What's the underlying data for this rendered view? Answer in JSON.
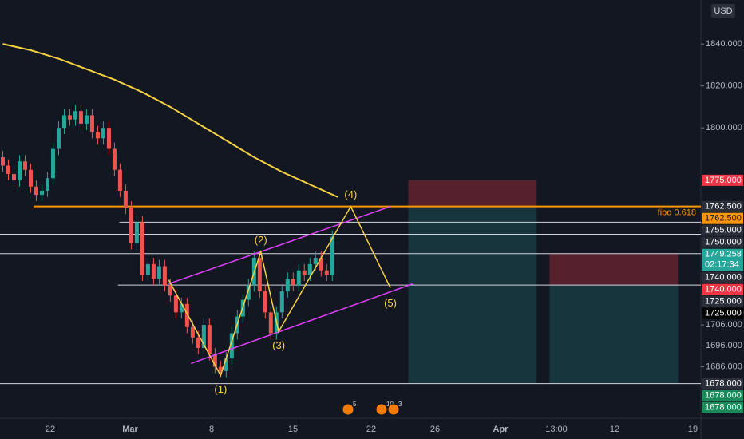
{
  "chart_data": {
    "type": "candlestick",
    "currency": "USD",
    "up_color": "#26a69a",
    "down_color": "#ef5350",
    "xlim": [
      -0.5,
      125
    ],
    "ylim": [
      1663,
      1861
    ],
    "open": [
      1786,
      1782,
      1778,
      1775,
      1784,
      1780,
      1772,
      1768,
      1770,
      1776,
      1790,
      1800,
      1806,
      1804,
      1808,
      1802,
      1806,
      1798,
      1795,
      1800,
      1790,
      1780,
      1770,
      1762,
      1745,
      1755,
      1730,
      1735,
      1728,
      1734,
      1725,
      1720,
      1712,
      1716,
      1705,
      1700,
      1695,
      1706,
      1692,
      1686,
      1684,
      1690,
      1702,
      1710,
      1718,
      1725,
      1738,
      1722,
      1712,
      1702,
      1712,
      1722,
      1728,
      1725,
      1732,
      1730,
      1735,
      1738,
      1732,
      1730
    ],
    "high": [
      1789,
      1785,
      1781,
      1787,
      1787,
      1783,
      1775,
      1773,
      1779,
      1793,
      1803,
      1809,
      1809,
      1811,
      1811,
      1809,
      1809,
      1801,
      1803,
      1803,
      1793,
      1783,
      1773,
      1765,
      1758,
      1758,
      1738,
      1738,
      1737,
      1737,
      1728,
      1723,
      1719,
      1719,
      1708,
      1703,
      1709,
      1709,
      1695,
      1689,
      1693,
      1705,
      1713,
      1721,
      1728,
      1741,
      1741,
      1725,
      1715,
      1715,
      1725,
      1731,
      1731,
      1735,
      1735,
      1738,
      1741,
      1741,
      1735,
      1751
    ],
    "low": [
      1779,
      1775,
      1772,
      1772,
      1777,
      1769,
      1765,
      1765,
      1767,
      1773,
      1787,
      1797,
      1801,
      1801,
      1799,
      1799,
      1795,
      1792,
      1792,
      1787,
      1777,
      1767,
      1759,
      1742,
      1742,
      1727,
      1727,
      1725,
      1725,
      1722,
      1717,
      1709,
      1709,
      1702,
      1697,
      1692,
      1692,
      1689,
      1683,
      1681,
      1681,
      1687,
      1699,
      1707,
      1715,
      1722,
      1719,
      1709,
      1699,
      1699,
      1709,
      1719,
      1722,
      1722,
      1727,
      1727,
      1732,
      1729,
      1727,
      1727
    ],
    "close": [
      1782,
      1778,
      1775,
      1784,
      1780,
      1772,
      1768,
      1770,
      1776,
      1790,
      1800,
      1806,
      1804,
      1808,
      1802,
      1806,
      1798,
      1795,
      1800,
      1790,
      1780,
      1770,
      1762,
      1745,
      1755,
      1730,
      1735,
      1728,
      1734,
      1725,
      1720,
      1712,
      1716,
      1705,
      1700,
      1695,
      1706,
      1692,
      1686,
      1684,
      1690,
      1702,
      1710,
      1718,
      1725,
      1738,
      1722,
      1712,
      1702,
      1712,
      1722,
      1728,
      1725,
      1732,
      1730,
      1735,
      1738,
      1732,
      1730,
      1748
    ],
    "yticks": [
      {
        "value": 1840,
        "label": "1840.000"
      },
      {
        "value": 1820,
        "label": "1820.000"
      },
      {
        "value": 1800,
        "label": "1800.000"
      },
      {
        "value": 1706,
        "label": "1706.000"
      },
      {
        "value": 1696,
        "label": "1696.000"
      },
      {
        "value": 1686,
        "label": "1686.000"
      }
    ],
    "x_labels": [
      "22",
      "Mar",
      "8",
      "15",
      "22",
      "26",
      "Apr",
      "13:00",
      "12",
      "19"
    ],
    "ma": {
      "color": "#f5d142",
      "x": [
        0,
        5,
        10,
        15,
        20,
        25,
        30,
        35,
        40,
        45,
        50,
        55,
        60
      ],
      "values": [
        1840,
        1837,
        1833,
        1828,
        1823,
        1817,
        1810,
        1802,
        1794,
        1786,
        1779,
        1773,
        1767
      ]
    },
    "waves": {
      "color": "#f5d142",
      "x": [
        29.7,
        39,
        46.2,
        49.4,
        62.3,
        69.4
      ],
      "values": [
        1727.5,
        1681.9,
        1740.8,
        1702.8,
        1762.5,
        1723.7
      ],
      "labels": [
        "(1)",
        "(2)",
        "(3)",
        "(4)",
        "(5)"
      ]
    },
    "channels": {
      "color": "#e040fb",
      "lines": [
        {
          "x": [
            29.7,
            69.4
          ],
          "values": [
            1725.6,
            1762.5
          ]
        },
        {
          "x": [
            33.7,
            73.4
          ],
          "values": [
            1687.6,
            1725.6
          ]
        }
      ]
    },
    "levels": [
      {
        "value": 1762.5,
        "color": "#ff9800",
        "from": 5.5
      },
      {
        "value": 1755,
        "color": "#d1d4dc",
        "from": 20.9
      },
      {
        "value": 1749.258,
        "color": "#d1d4dc",
        "from": -0.5
      },
      {
        "value": 1740,
        "color": "#d1d4dc",
        "from": -0.5
      },
      {
        "value": 1725,
        "color": "#d1d4dc",
        "from": 20.6
      },
      {
        "value": 1678,
        "color": "#d1d4dc",
        "from": -0.5
      }
    ],
    "fibo_label": "fibo 0.618",
    "positions": [
      {
        "x": [
          72.6,
          95.6
        ],
        "stop": 1775,
        "entry": 1762.5,
        "target": 1678
      },
      {
        "x": [
          97.9,
          120.9
        ],
        "stop": 1740,
        "entry": 1725,
        "target": 1678
      }
    ],
    "price_tags": [
      {
        "value": 1775,
        "label": "1775.000",
        "color": "#f23645"
      },
      {
        "value": 1762.5,
        "label": "1762.500",
        "color": "#2a2e39"
      },
      {
        "value": 1762.5,
        "label": "1762.500",
        "color": "#ff9800"
      },
      {
        "value": 1755,
        "label": "1755.000",
        "color": "#2a2e39"
      },
      {
        "value": 1750,
        "label": "1750.000",
        "color": "#2a2e39"
      },
      {
        "value": 1749.258,
        "label": "1749.258",
        "color": "#26a69a"
      },
      {
        "value": 1740,
        "label": "1740.000",
        "color": "#2a2e39"
      },
      {
        "value": 1740,
        "label": "1740.000",
        "color": "#f23645"
      },
      {
        "value": 1725,
        "label": "1725.000",
        "color": "#2a2e39"
      },
      {
        "value": 1725,
        "label": "1725.000",
        "color": "#000000"
      },
      {
        "value": 1678,
        "label": "1678.000",
        "color": "#2a2e39"
      },
      {
        "value": 1678,
        "label": "1678.000",
        "color": "#1b8a5a"
      },
      {
        "value": 1678,
        "label": "1678.000",
        "color": "#1b8a5a"
      }
    ],
    "countdown": "02:17:34",
    "events": [
      "5",
      "10",
      "3"
    ]
  }
}
